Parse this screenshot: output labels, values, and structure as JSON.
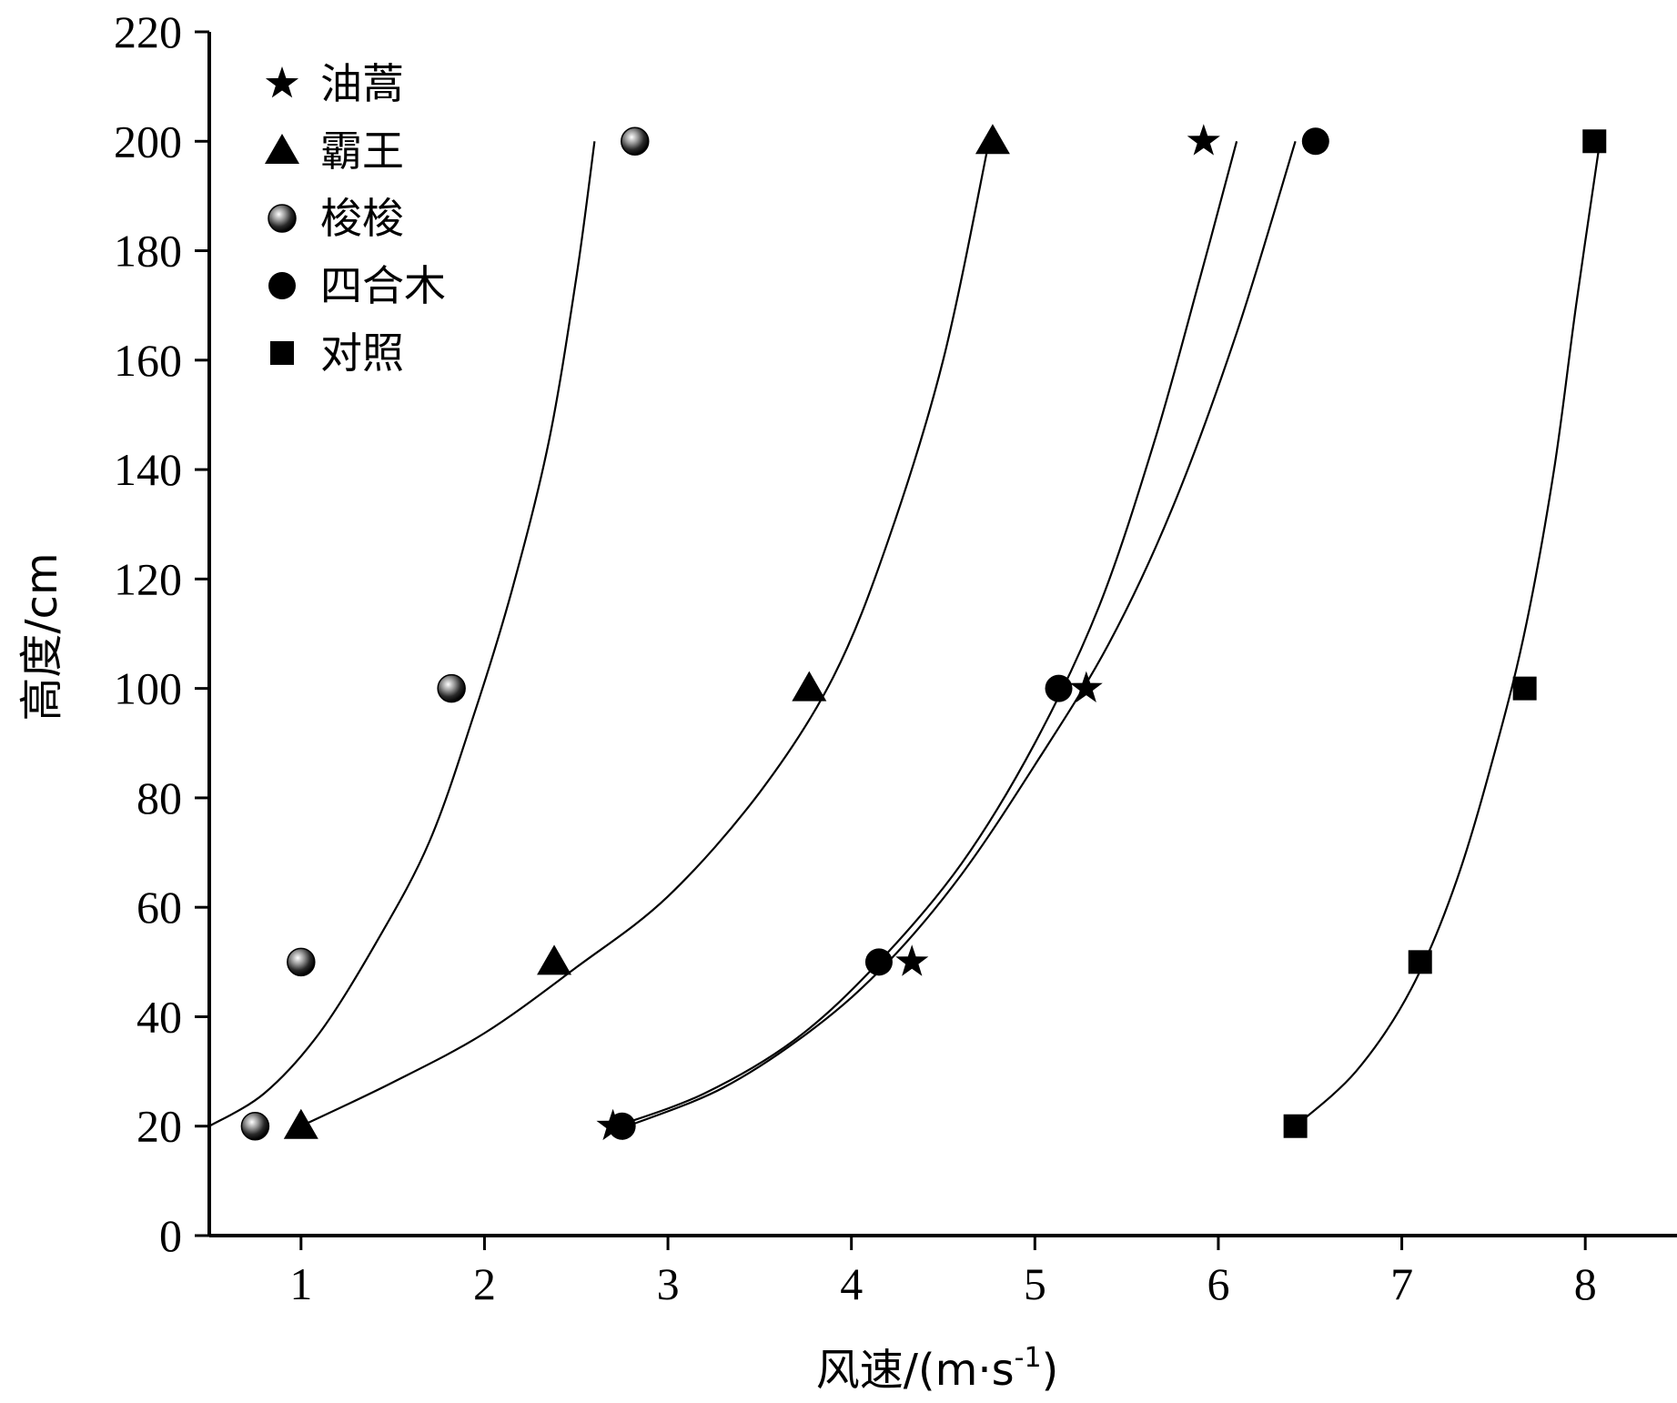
{
  "chart_data": {
    "type": "scatter",
    "title": "",
    "xlabel_main": "风速/(m·s",
    "xlabel_sup": "-1",
    "xlabel_tail": ")",
    "ylabel": "高度/cm",
    "xlim": [
      0.5,
      8.5
    ],
    "ylim": [
      0,
      220
    ],
    "xticks": [
      1,
      2,
      3,
      4,
      5,
      6,
      7,
      8
    ],
    "yticks": [
      0,
      20,
      40,
      60,
      80,
      100,
      120,
      140,
      160,
      180,
      200,
      220
    ],
    "grid": false,
    "legend_position": "top-left",
    "series": [
      {
        "name": "油蒿",
        "marker": "star",
        "points": [
          [
            2.7,
            20
          ],
          [
            4.33,
            50
          ],
          [
            5.28,
            100
          ],
          [
            5.92,
            200
          ]
        ],
        "curve": [
          [
            2.72,
            20
          ],
          [
            3.2,
            26
          ],
          [
            3.7,
            36
          ],
          [
            4.15,
            50
          ],
          [
            4.6,
            68
          ],
          [
            5.0,
            90
          ],
          [
            5.35,
            115
          ],
          [
            5.65,
            145
          ],
          [
            5.9,
            175
          ],
          [
            6.1,
            200
          ]
        ]
      },
      {
        "name": "霸王",
        "marker": "triangle",
        "points": [
          [
            1.0,
            20
          ],
          [
            2.38,
            50
          ],
          [
            3.77,
            100
          ],
          [
            4.77,
            200
          ]
        ],
        "curve": [
          [
            1.0,
            20
          ],
          [
            1.5,
            28
          ],
          [
            2.0,
            37
          ],
          [
            2.5,
            49
          ],
          [
            3.0,
            62
          ],
          [
            3.5,
            81
          ],
          [
            3.9,
            102
          ],
          [
            4.2,
            127
          ],
          [
            4.5,
            160
          ],
          [
            4.75,
            200
          ]
        ]
      },
      {
        "name": "梭梭",
        "marker": "ball",
        "points": [
          [
            0.75,
            20
          ],
          [
            1.0,
            50
          ],
          [
            1.82,
            100
          ],
          [
            2.82,
            200
          ]
        ],
        "curve": [
          [
            0.5,
            20
          ],
          [
            0.8,
            26
          ],
          [
            1.1,
            37
          ],
          [
            1.4,
            53
          ],
          [
            1.7,
            72
          ],
          [
            1.95,
            96
          ],
          [
            2.15,
            118
          ],
          [
            2.35,
            145
          ],
          [
            2.5,
            175
          ],
          [
            2.6,
            200
          ]
        ]
      },
      {
        "name": "四合木",
        "marker": "circle",
        "points": [
          [
            2.75,
            20
          ],
          [
            4.15,
            50
          ],
          [
            5.13,
            100
          ],
          [
            6.53,
            200
          ]
        ],
        "curve": [
          [
            2.78,
            20
          ],
          [
            3.3,
            27
          ],
          [
            3.8,
            38
          ],
          [
            4.2,
            50
          ],
          [
            4.6,
            66
          ],
          [
            5.0,
            86
          ],
          [
            5.4,
            108
          ],
          [
            5.75,
            133
          ],
          [
            6.1,
            165
          ],
          [
            6.42,
            200
          ]
        ]
      },
      {
        "name": "对照",
        "marker": "square",
        "points": [
          [
            6.42,
            20
          ],
          [
            7.1,
            50
          ],
          [
            7.67,
            100
          ],
          [
            8.05,
            200
          ]
        ],
        "curve": [
          [
            6.42,
            20
          ],
          [
            6.75,
            30
          ],
          [
            7.05,
            45
          ],
          [
            7.3,
            65
          ],
          [
            7.52,
            90
          ],
          [
            7.68,
            112
          ],
          [
            7.83,
            140
          ],
          [
            7.95,
            170
          ],
          [
            8.08,
            200
          ]
        ]
      }
    ]
  }
}
